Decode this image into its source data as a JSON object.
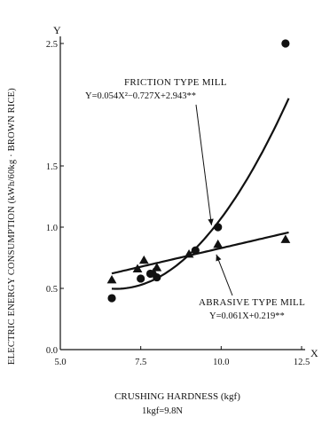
{
  "chart_data": {
    "type": "scatter",
    "title": "",
    "ylabel": "ELECTRIC ENERGY CONSUMPTION (kWh/60kg · BROWN RICE)",
    "xlabel": "CRUSHING HARDNESS (kgf)",
    "xlabel_note": "1kgf=9.8N",
    "x_axis_letter": "X",
    "y_axis_letter": "Y",
    "xlim": [
      5.0,
      12.5
    ],
    "ylim": [
      0.0,
      2.5
    ],
    "x_ticks": [
      5.0,
      7.5,
      10.0,
      12.5
    ],
    "x_tick_labels": [
      "5.0",
      "7.5",
      "10.0",
      "12.5"
    ],
    "y_ticks": [
      0.0,
      0.5,
      1.0,
      1.5,
      2.5
    ],
    "y_tick_labels": [
      "0.0",
      "0.5",
      "1.0",
      "1.5",
      "2.5"
    ],
    "grid": false,
    "legend": "none",
    "series": [
      {
        "marker": "circle",
        "points": [
          {
            "x": 6.6,
            "y": 0.42
          },
          {
            "x": 7.5,
            "y": 0.58
          },
          {
            "x": 7.8,
            "y": 0.62
          },
          {
            "x": 8.0,
            "y": 0.59
          },
          {
            "x": 9.2,
            "y": 0.81
          },
          {
            "x": 9.9,
            "y": 1.0
          },
          {
            "x": 12.0,
            "y": 2.5
          }
        ],
        "fit": {
          "type": "quadratic",
          "a": 0.054,
          "b": -0.727,
          "c": 2.943,
          "x_range": [
            6.6,
            12.1
          ]
        },
        "label": "FRICTION TYPE MILL",
        "equation": "Y=0.054X²−0.727X+2.943**"
      },
      {
        "marker": "triangle",
        "points": [
          {
            "x": 6.6,
            "y": 0.57
          },
          {
            "x": 7.4,
            "y": 0.66
          },
          {
            "x": 7.6,
            "y": 0.73
          },
          {
            "x": 7.9,
            "y": 0.63
          },
          {
            "x": 8.0,
            "y": 0.67
          },
          {
            "x": 9.0,
            "y": 0.78
          },
          {
            "x": 9.9,
            "y": 0.86
          },
          {
            "x": 12.0,
            "y": 0.9
          }
        ],
        "fit": {
          "type": "linear",
          "a": 0.061,
          "b": 0.219,
          "x_range": [
            6.6,
            12.1
          ]
        },
        "label": "ABRASIVE TYPE MILL",
        "equation": "Y=0.061X+0.219**"
      }
    ]
  }
}
